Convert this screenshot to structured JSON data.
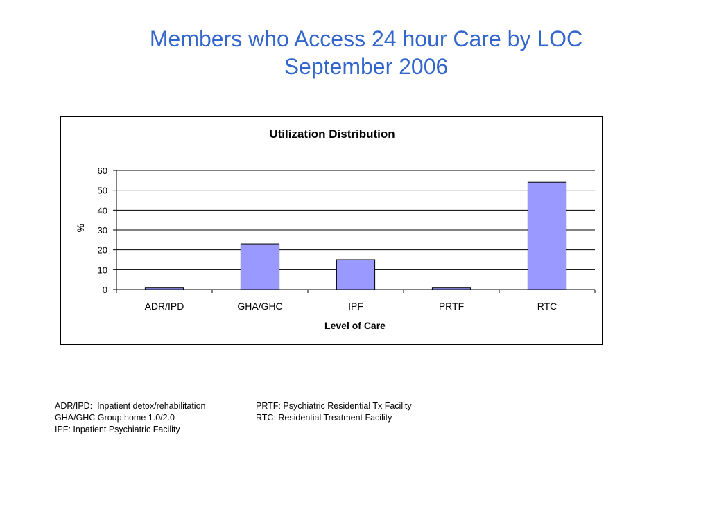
{
  "slide": {
    "title_line1": "Members who Access 24 hour Care by LOC",
    "title_line2": "September 2006"
  },
  "colors": {
    "title": "#3366cc",
    "bar_fill": "#9999ff",
    "bar_stroke": "#000000"
  },
  "chart_data": {
    "type": "bar",
    "title": "Utilization Distribution",
    "xlabel": "Level of Care",
    "ylabel": "%",
    "categories": [
      "ADR/IPD",
      "GHA/GHC",
      "IPF",
      "PRTF",
      "RTC"
    ],
    "values": [
      0.8,
      23,
      15,
      0.8,
      54
    ],
    "ylim": [
      0,
      60
    ],
    "yticks": [
      0,
      10,
      20,
      30,
      40,
      50,
      60
    ],
    "grid": true,
    "legend": "none"
  },
  "footnotes": {
    "left": [
      "ADR/IPD:  Inpatient detox/rehabilitation",
      "GHA/GHC Group home 1.0/2.0",
      "IPF: Inpatient Psychiatric Facility"
    ],
    "right": [
      "PRTF: Psychiatric Residential Tx Facility",
      "RTC: Residential Treatment Facility"
    ]
  }
}
